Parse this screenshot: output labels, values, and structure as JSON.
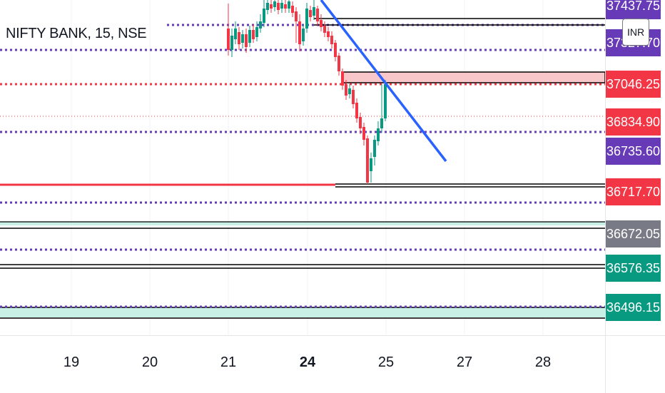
{
  "symbol": {
    "title": "NIFTY BANK, 15, NSE",
    "currency": "INR"
  },
  "price_axis": [
    {
      "text": "37437.75",
      "color": "#673ab7"
    },
    {
      "text": "37327.70",
      "color": "#673ab7"
    },
    {
      "text": "37046.25",
      "color": "#f23645"
    },
    {
      "text": "36834.90",
      "color": "#f23645"
    },
    {
      "text": "36735.60",
      "color": "#673ab7"
    },
    {
      "text": "36717.70",
      "color": "#f23645"
    },
    {
      "text": "36672.05",
      "color": "#787b86"
    },
    {
      "text": "36576.35",
      "color": "#089981"
    },
    {
      "text": "36496.15",
      "color": "#089981"
    }
  ],
  "time_axis": [
    {
      "text": "19",
      "bold": false
    },
    {
      "text": "20",
      "bold": false
    },
    {
      "text": "21",
      "bold": false
    },
    {
      "text": "24",
      "bold": true
    },
    {
      "text": "25",
      "bold": false
    },
    {
      "text": "27",
      "bold": false
    },
    {
      "text": "28",
      "bold": false
    }
  ],
  "colors": {
    "up": "#089981",
    "down": "#f23645",
    "level_purple": "#673ab7",
    "trendline": "#2962ff",
    "zone_red": "#f8c7c9",
    "zone_green": "#c8f0e4"
  }
}
